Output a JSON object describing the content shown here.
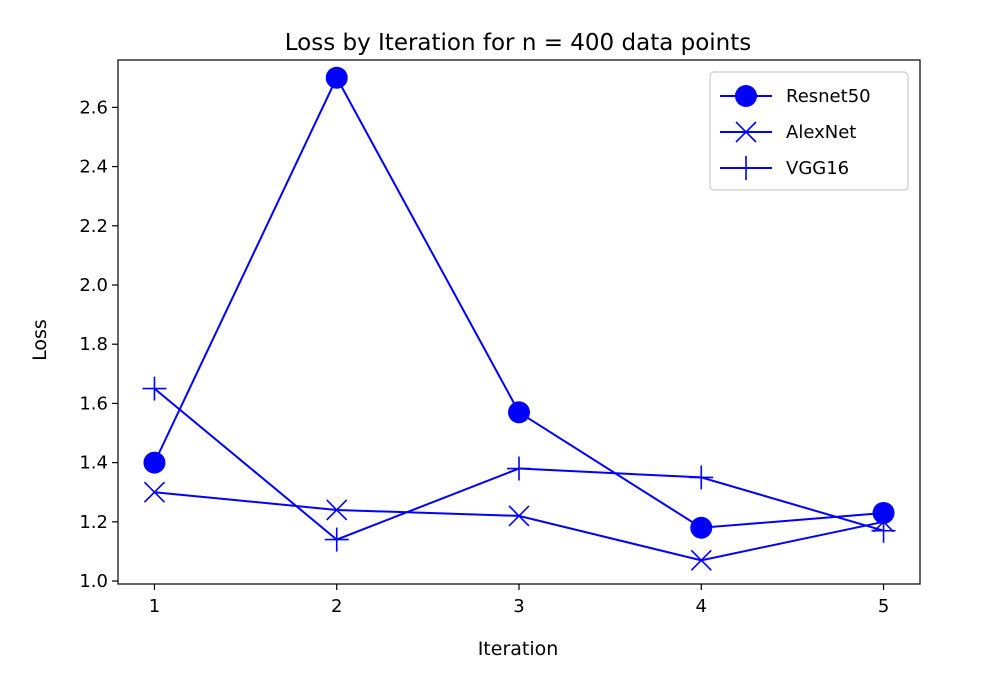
{
  "chart_data": {
    "type": "line",
    "title": "Loss by Iteration for n = 400 data points",
    "xlabel": "Iteration",
    "ylabel": "Loss",
    "x": [
      1,
      2,
      3,
      4,
      5
    ],
    "xlim": [
      0.8,
      5.2
    ],
    "ylim": [
      0.99,
      2.76
    ],
    "xticks": [
      1,
      2,
      3,
      4,
      5
    ],
    "yticks": [
      1.0,
      1.2,
      1.4,
      1.6,
      1.8,
      2.0,
      2.2,
      2.4,
      2.6
    ],
    "ytick_labels": [
      "1.0",
      "1.2",
      "1.4",
      "1.6",
      "1.8",
      "2.0",
      "2.2",
      "2.4",
      "2.6"
    ],
    "grid": false,
    "legend_position": "top-right",
    "color": "#0000ff",
    "series": [
      {
        "name": "Resnet50",
        "marker": "circle",
        "values": [
          1.4,
          2.7,
          1.57,
          1.18,
          1.23
        ]
      },
      {
        "name": "AlexNet",
        "marker": "x",
        "values": [
          1.3,
          1.24,
          1.22,
          1.07,
          1.2
        ]
      },
      {
        "name": "VGG16",
        "marker": "plus",
        "values": [
          1.65,
          1.14,
          1.38,
          1.35,
          1.17
        ]
      }
    ]
  }
}
